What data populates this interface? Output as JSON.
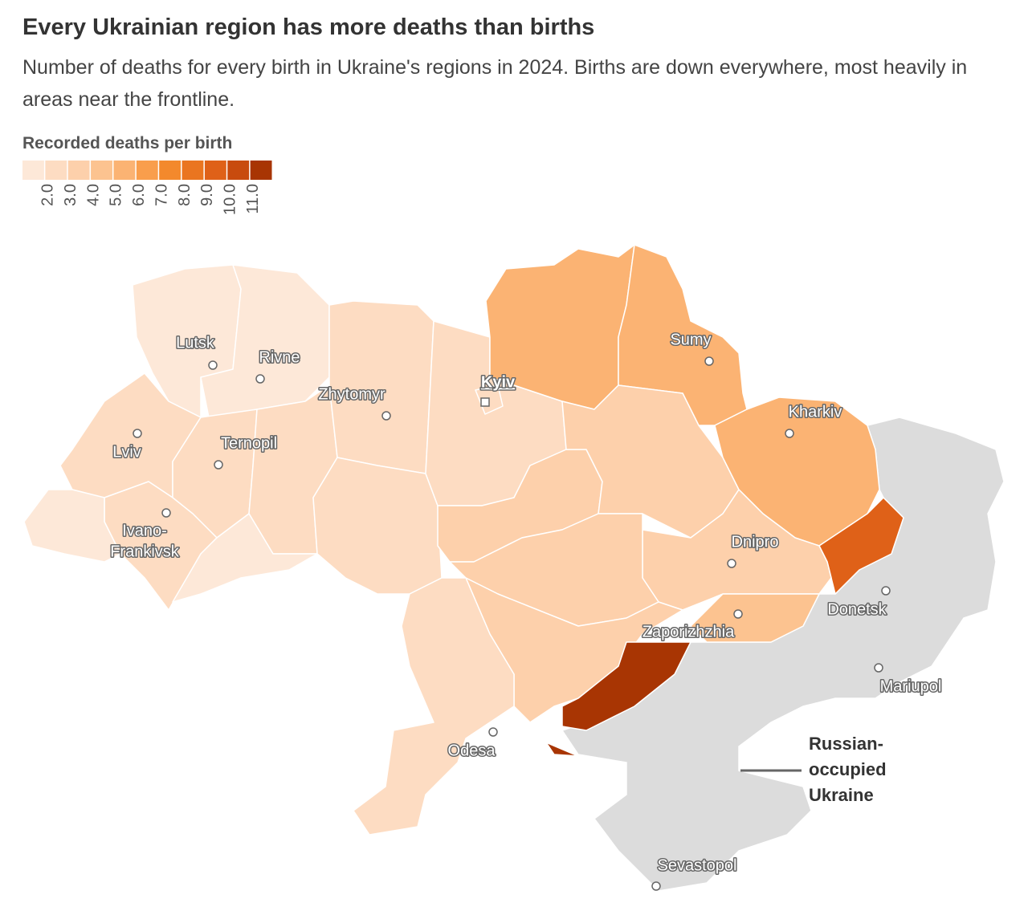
{
  "header": {
    "title": "Every Ukrainian region has more deaths than births",
    "subtitle": "Number of deaths for every birth in Ukraine's regions in 2024. Births are down everywhere, most heavily in areas near the frontline."
  },
  "legend": {
    "title": "Recorded deaths per birth",
    "colors": [
      "#fde8d8",
      "#fddcc2",
      "#fdd0ab",
      "#fcc390",
      "#fbb373",
      "#f99e4c",
      "#f3892c",
      "#ea7520",
      "#df6118",
      "#c84b0e",
      "#a83503"
    ],
    "ticks": [
      {
        "value": 2,
        "label": "2.0"
      },
      {
        "value": 3,
        "label": "3.0"
      },
      {
        "value": 4,
        "label": "4.0"
      },
      {
        "value": 5,
        "label": "5.0"
      },
      {
        "value": 6,
        "label": "6.0"
      },
      {
        "value": 7,
        "label": "7.0"
      },
      {
        "value": 8,
        "label": "8.0"
      },
      {
        "value": 9,
        "label": "9.0"
      },
      {
        "value": 10,
        "label": "10.0"
      },
      {
        "value": 11,
        "label": "11.0"
      }
    ]
  },
  "map": {
    "region_values": [
      1.9,
      1.9,
      2.5,
      2.6,
      2.6,
      2.5,
      1.8,
      1.9,
      2.7,
      2.7,
      2.6,
      2.6,
      5.2,
      5.1,
      3.5,
      3.6,
      5.0,
      9.2,
      3.9,
      4.8,
      3.5,
      3.6,
      2.5,
      11.5
    ],
    "occupied_color": "#dcdcdc",
    "cities": [
      {
        "lines": [
          "Lutsk"
        ]
      },
      {
        "lines": [
          "Rivne"
        ]
      },
      {
        "lines": [
          "Zhytomyr"
        ]
      },
      {
        "lines": [
          "Kyiv"
        ],
        "capital": true
      },
      {
        "lines": [
          "Lviv"
        ]
      },
      {
        "lines": [
          "Ternopil"
        ]
      },
      {
        "lines": [
          "Ivano-",
          "Frankivsk"
        ]
      },
      {
        "lines": [
          "Sumy"
        ]
      },
      {
        "lines": [
          "Kharkiv"
        ]
      },
      {
        "lines": [
          "Dnipro"
        ]
      },
      {
        "lines": [
          "Donetsk"
        ]
      },
      {
        "lines": [
          "Zaporizhzhia"
        ]
      },
      {
        "lines": [
          "Mariupol"
        ]
      },
      {
        "lines": [
          "Odesa"
        ]
      },
      {
        "lines": [
          "Sevastopol"
        ]
      }
    ],
    "annotation": [
      "Russian-",
      "occupied",
      "Ukraine"
    ]
  }
}
